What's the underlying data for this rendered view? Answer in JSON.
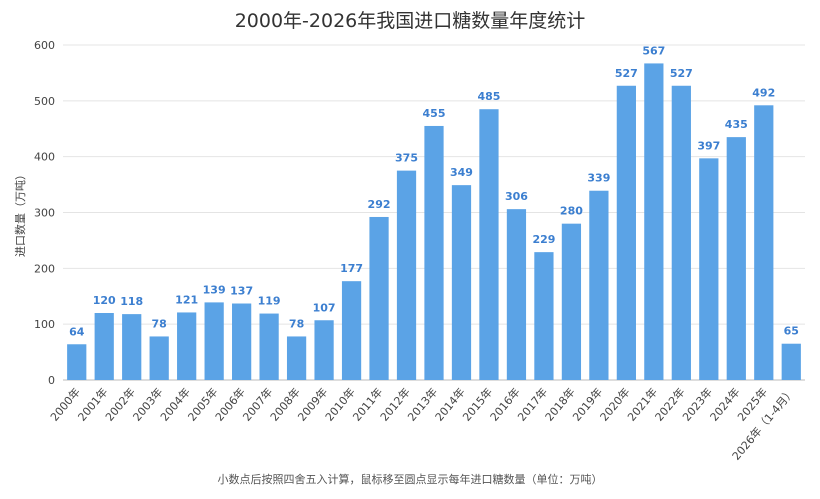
{
  "chart_data": {
    "type": "bar",
    "title": "2000年-2026年我国进口糖数量年度统计",
    "ylabel": "进口数量（万吨）",
    "xlabel": "",
    "footnote": "小数点后按照四舍五入计算，鼠标移至圆点显示每年进口糖数量（单位：万吨）",
    "ylim": [
      0,
      600
    ],
    "yticks": [
      0,
      100,
      200,
      300,
      400,
      500,
      600
    ],
    "grid": true,
    "bar_color": "#5ba3e6",
    "label_color": "#3c7fd0",
    "categories": [
      "2000年",
      "2001年",
      "2002年",
      "2003年",
      "2004年",
      "2005年",
      "2006年",
      "2007年",
      "2008年",
      "2009年",
      "2010年",
      "2011年",
      "2012年",
      "2013年",
      "2014年",
      "2015年",
      "2016年",
      "2017年",
      "2018年",
      "2019年",
      "2020年",
      "2021年",
      "2022年",
      "2023年",
      "2024年",
      "2025年",
      "2026年（1-4月）"
    ],
    "values": [
      64,
      120,
      118,
      78,
      121,
      139,
      137,
      119,
      78,
      107,
      177,
      292,
      375,
      455,
      349,
      485,
      306,
      229,
      280,
      339,
      527,
      567,
      527,
      397,
      435,
      492,
      65
    ]
  }
}
